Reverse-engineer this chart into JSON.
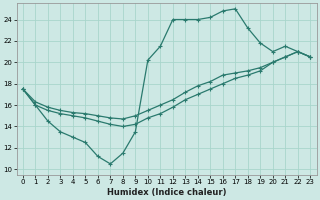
{
  "xlabel": "Humidex (Indice chaleur)",
  "ylabel": "",
  "xlim": [
    -0.5,
    23.5
  ],
  "ylim": [
    9.5,
    25.5
  ],
  "xticks": [
    0,
    1,
    2,
    3,
    4,
    5,
    6,
    7,
    8,
    9,
    10,
    11,
    12,
    13,
    14,
    15,
    16,
    17,
    18,
    19,
    20,
    21,
    22,
    23
  ],
  "yticks": [
    10,
    12,
    14,
    16,
    18,
    20,
    22,
    24
  ],
  "background_color": "#cde8e4",
  "grid_color": "#a8d5cc",
  "line_color": "#2a7a6e",
  "line1_x": [
    0,
    1,
    2,
    3,
    4,
    5,
    6,
    7,
    8,
    9,
    10,
    11,
    12,
    13,
    14,
    15,
    16,
    17,
    18,
    19,
    20,
    21,
    22,
    23
  ],
  "line1_y": [
    17.5,
    16.0,
    14.5,
    13.5,
    13.0,
    12.5,
    11.2,
    10.5,
    11.5,
    13.5,
    20.2,
    21.5,
    24.0,
    24.0,
    24.0,
    24.2,
    24.8,
    25.0,
    23.2,
    21.8,
    21.0,
    21.5,
    21.0,
    20.5
  ],
  "line2_x": [
    0,
    1,
    2,
    3,
    4,
    5,
    6,
    7,
    8,
    9,
    10,
    11,
    12,
    13,
    14,
    15,
    16,
    17,
    18,
    19,
    20,
    21,
    22,
    23
  ],
  "line2_y": [
    17.5,
    16.3,
    15.8,
    15.5,
    15.3,
    15.2,
    15.0,
    14.8,
    14.7,
    15.0,
    15.5,
    16.0,
    16.5,
    17.2,
    17.8,
    18.2,
    18.8,
    19.0,
    19.2,
    19.5,
    20.0,
    20.5,
    21.0,
    20.5
  ],
  "line3_x": [
    0,
    1,
    2,
    3,
    4,
    5,
    6,
    7,
    8,
    9,
    10,
    11,
    12,
    13,
    14,
    15,
    16,
    17,
    18,
    19,
    20,
    21,
    22,
    23
  ],
  "line3_y": [
    17.5,
    16.0,
    15.5,
    15.2,
    15.0,
    14.8,
    14.5,
    14.2,
    14.0,
    14.2,
    14.8,
    15.2,
    15.8,
    16.5,
    17.0,
    17.5,
    18.0,
    18.5,
    18.8,
    19.2,
    20.0,
    20.5,
    21.0,
    20.5
  ]
}
